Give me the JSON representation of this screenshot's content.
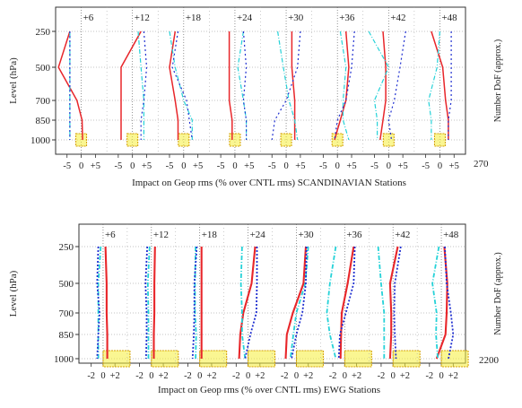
{
  "chart_data": [
    {
      "type": "line",
      "title": "",
      "xlabel": "Impact on Geop rms  (% over CNTL rms) SCANDINAVIAN Stations",
      "ylabel": "Level (hPa)",
      "right_label": "Number DoF (approx.)",
      "dof_value": "270",
      "levels": [
        250,
        500,
        700,
        850,
        1000
      ],
      "level_ticks": [
        "250",
        "500",
        "700",
        "850",
        "1000"
      ],
      "ylim": [
        200,
        1060
      ],
      "xlim": [
        -9,
        9
      ],
      "x_ticks": [
        "-5",
        "0",
        "+5"
      ],
      "grid": true,
      "panels": [
        "+6",
        "+12",
        "+18",
        "+24",
        "+30",
        "+36",
        "+42",
        "+48"
      ],
      "series_colors": [
        "#e8262a",
        "#25d2d8",
        "#1f2fd0"
      ],
      "series_values": [
        [
          [
            -4,
            -8,
            -1.5,
            0.3,
            0.5
          ],
          [
            -4,
            -4,
            -4,
            -4,
            -4
          ],
          [
            -4,
            -4,
            -4,
            -4,
            -4
          ]
        ],
        [
          [
            3,
            -4,
            -4,
            -4,
            -4
          ],
          [
            2,
            3,
            4,
            4,
            4
          ],
          [
            4,
            5,
            4,
            3,
            3
          ]
        ],
        [
          [
            -3,
            -5,
            -3,
            -2,
            -2
          ],
          [
            -5,
            -3,
            0,
            3,
            3
          ],
          [
            -2,
            -4,
            1,
            2,
            3
          ]
        ],
        [
          [
            -2,
            -2,
            -2,
            -1,
            -1
          ],
          [
            3,
            1,
            3,
            4,
            4
          ],
          [
            3,
            4,
            3,
            4,
            4
          ]
        ],
        [
          [
            2,
            2,
            3,
            3,
            3
          ],
          [
            -3,
            -1,
            1,
            3,
            4
          ],
          [
            5,
            4,
            0,
            -4,
            -5
          ]
        ],
        [
          [
            3,
            4,
            3,
            1,
            -1
          ],
          [
            1,
            3,
            2,
            2,
            4
          ],
          [
            6,
            5,
            3,
            0,
            -1
          ]
        ],
        [
          [
            -2,
            -1,
            -1,
            -2,
            -3
          ],
          [
            -7,
            0,
            -5,
            -4,
            -4
          ],
          [
            6,
            4,
            2,
            0,
            1
          ]
        ],
        [
          [
            -3,
            1,
            2,
            3,
            3
          ],
          [
            0,
            -1,
            -4,
            -3,
            -3
          ],
          [
            4,
            4,
            4,
            3,
            3
          ]
        ]
      ]
    },
    {
      "type": "line",
      "title": "",
      "xlabel": "Impact on Geop rms  (% over CNTL rms) EWG Stations",
      "ylabel": "Level (hPa)",
      "right_label": "Number DoF (approx.)",
      "dof_value": "2200",
      "levels": [
        250,
        500,
        700,
        850,
        1000
      ],
      "level_ticks": [
        "250",
        "500",
        "700",
        "850",
        "1000"
      ],
      "ylim": [
        200,
        1060
      ],
      "xlim": [
        -4,
        4
      ],
      "x_ticks": [
        "-2",
        "0",
        "+2"
      ],
      "grid": true,
      "panels": [
        "+6",
        "+12",
        "+18",
        "+24",
        "+30",
        "+36",
        "+42",
        "+48"
      ],
      "series_colors": [
        "#e8262a",
        "#25d2d8",
        "#1f2fd0"
      ],
      "series_values": [
        [
          [
            0.4,
            0.6,
            0.6,
            0.7,
            0.7
          ],
          [
            -0.4,
            -0.8,
            -0.8,
            -0.8,
            -0.8
          ],
          [
            -0.8,
            -1.0,
            -0.6,
            -0.8,
            -1.0
          ]
        ],
        [
          [
            0.6,
            0.5,
            0.5,
            0.4,
            0.4
          ],
          [
            -0.3,
            -0.6,
            -0.5,
            -0.5,
            -0.5
          ],
          [
            -0.7,
            -1.0,
            -0.8,
            -0.8,
            -0.9
          ]
        ],
        [
          [
            0.3,
            0.3,
            0.3,
            0.3,
            0.3
          ],
          [
            -0.7,
            -0.8,
            -0.8,
            -0.6,
            -0.7
          ],
          [
            -0.5,
            -0.9,
            -0.9,
            -1.0,
            -1.2
          ]
        ],
        [
          [
            1.2,
            0.6,
            -0.8,
            -1.3,
            -1.5
          ],
          [
            -1.0,
            -1.2,
            -1.0,
            -1.0,
            -0.5
          ],
          [
            1.5,
            1.5,
            1.4,
            0.4,
            -0.5
          ]
        ],
        [
          [
            1.6,
            1.2,
            -0.6,
            -1.6,
            -1.8
          ],
          [
            2.0,
            1.5,
            0.0,
            -0.5,
            -1.0
          ],
          [
            1.7,
            1.6,
            1.0,
            0.0,
            -0.8
          ]
        ],
        [
          [
            1.5,
            0.5,
            -0.5,
            -0.6,
            -0.7
          ],
          [
            -1.5,
            -2.5,
            -3.0,
            -2.5,
            -1.5
          ],
          [
            1.7,
            1.5,
            0.2,
            -0.8,
            -1.0
          ]
        ],
        [
          [
            0.8,
            -0.5,
            -0.3,
            -0.3,
            -0.5
          ],
          [
            -2.5,
            -2.0,
            -1.5,
            -1.5,
            -1.5
          ],
          [
            1.3,
            0.3,
            0.2,
            0.3,
            0.5
          ]
        ],
        [
          [
            0.5,
            1.0,
            0.9,
            0.7,
            -0.8
          ],
          [
            -0.4,
            -1.5,
            -0.8,
            -0.9,
            -0.6
          ],
          [
            0.6,
            0.9,
            1.6,
            2.0,
            1.2
          ]
        ]
      ]
    }
  ]
}
